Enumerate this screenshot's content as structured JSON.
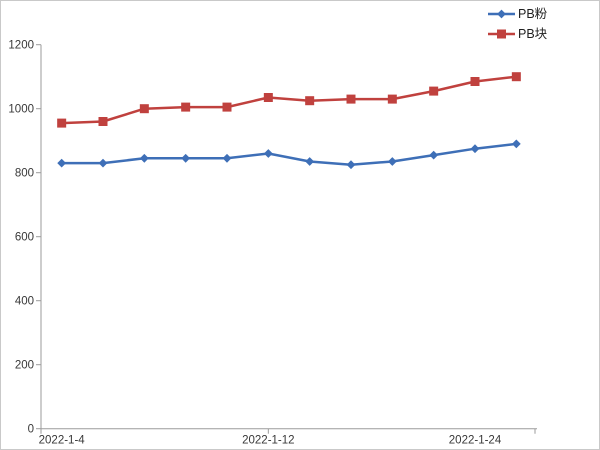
{
  "chart_data": {
    "type": "line",
    "title": "",
    "xlabel": "",
    "ylabel": "",
    "num_points": 12,
    "x_tick_labels": [
      {
        "index": 0,
        "label": "2022-1-4"
      },
      {
        "index": 5,
        "label": "2022-1-12"
      },
      {
        "index": 10,
        "label": "2022-1-24"
      }
    ],
    "y_axis": {
      "min": 0,
      "max": 1200,
      "step": 200,
      "tick_labels": [
        "0",
        "200",
        "400",
        "600",
        "800",
        "1000",
        "1200"
      ]
    },
    "grid": false,
    "legend_position": "top-right",
    "series": [
      {
        "name": "PB粉",
        "marker": "diamond",
        "color": "#3E6FB7",
        "values": [
          830,
          830,
          845,
          845,
          845,
          860,
          835,
          825,
          835,
          855,
          875,
          890
        ]
      },
      {
        "name": "PB块",
        "marker": "square",
        "color": "#C0413E",
        "values": [
          955,
          960,
          1000,
          1005,
          1005,
          1035,
          1025,
          1030,
          1030,
          1055,
          1085,
          1100
        ]
      }
    ]
  },
  "style": {
    "axis_color": "#9b9b9b",
    "label_color": "#383838",
    "background": "#ffffff",
    "border_color": "#c9c9c9"
  }
}
